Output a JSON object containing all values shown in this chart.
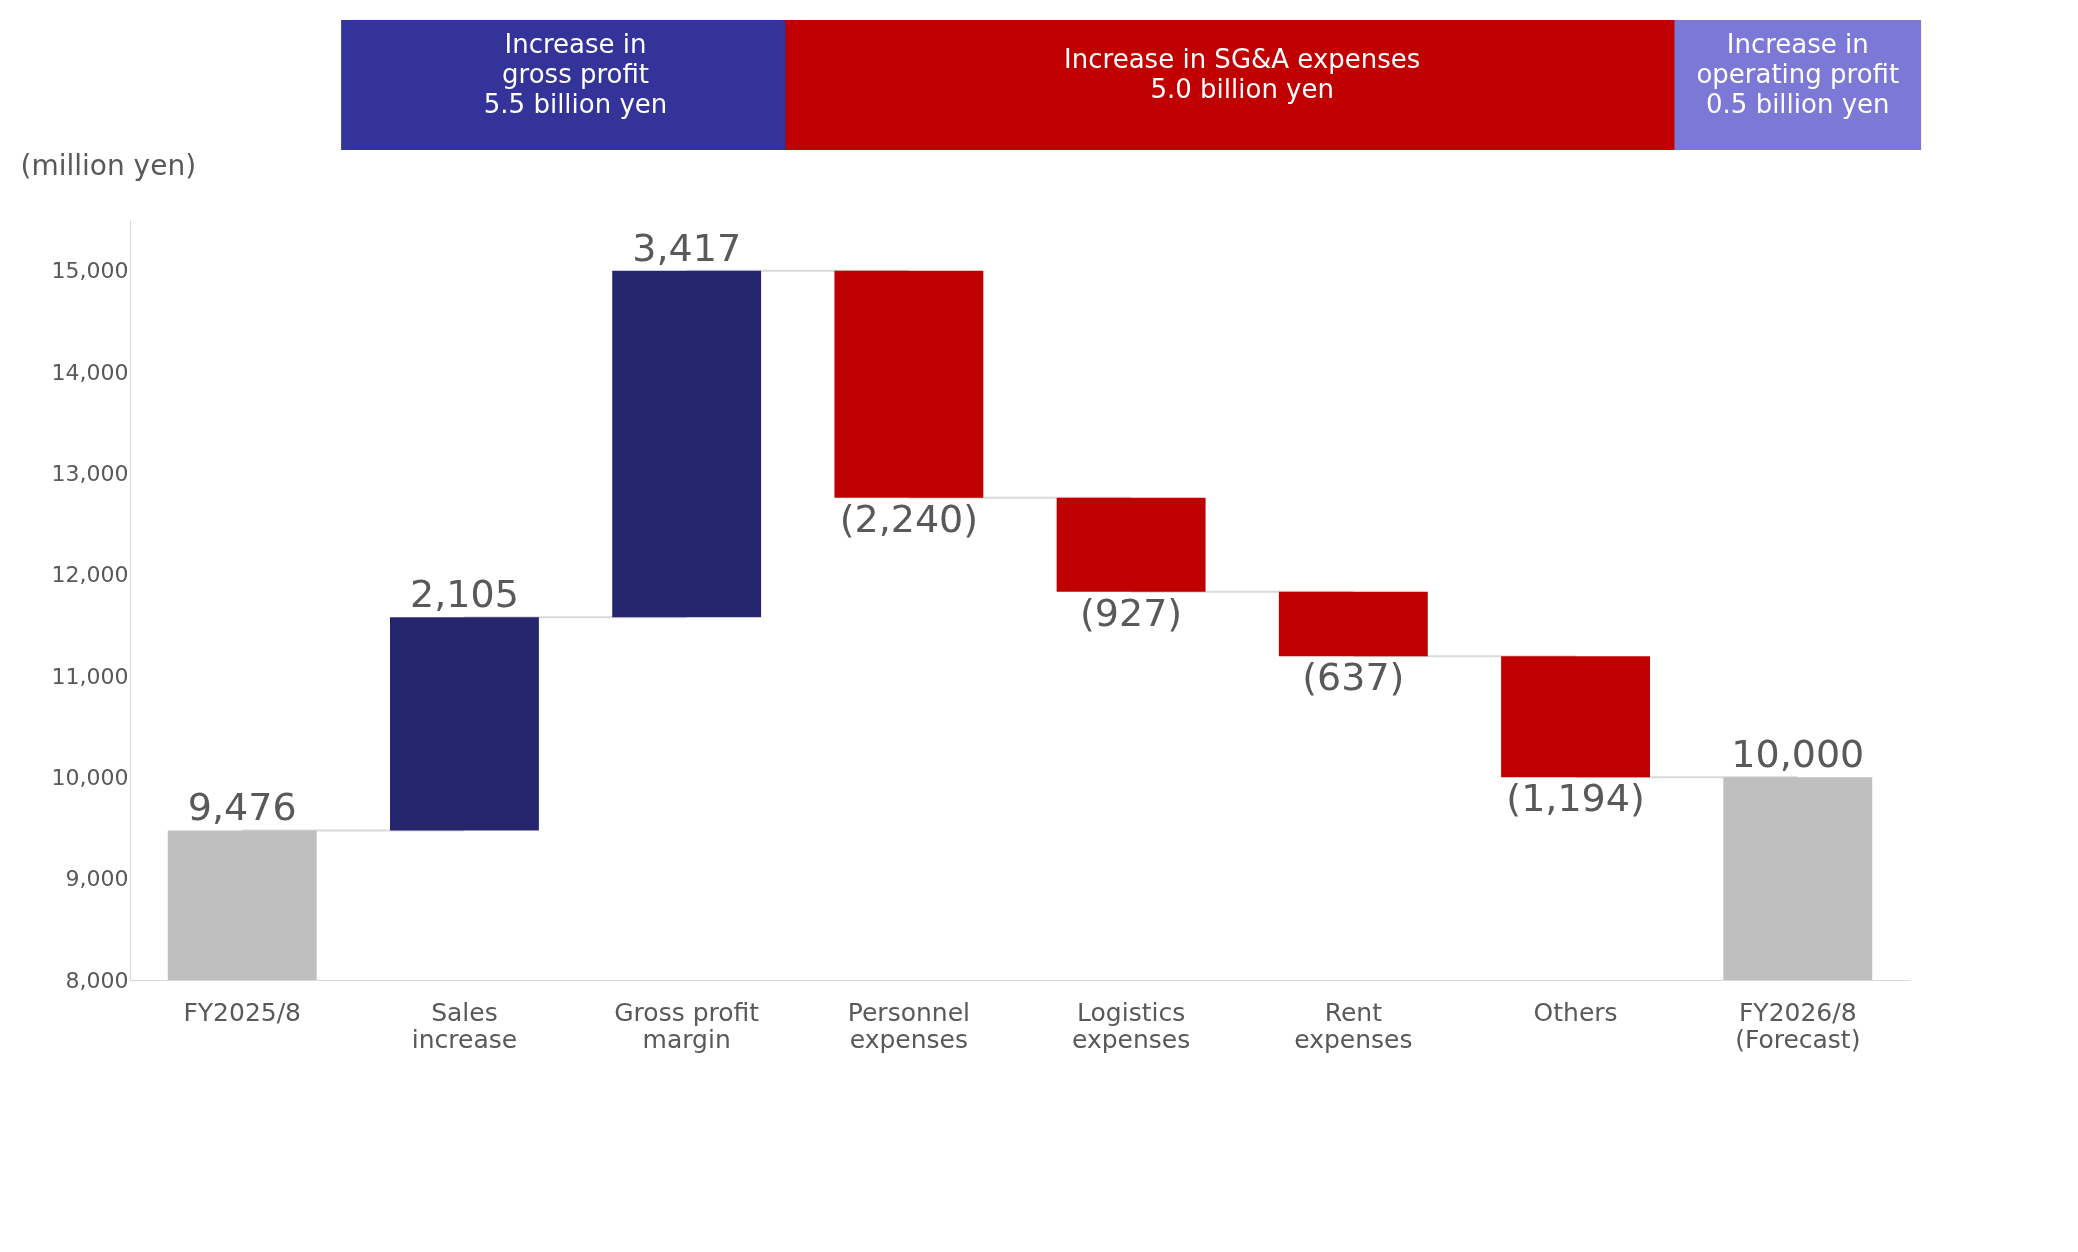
{
  "chart_data": {
    "type": "bar",
    "ylabel": "(million yen)",
    "categories": [
      "FY2025/8",
      "Sales\nincrease",
      "Gross profit\nmargin",
      "Personnel\nexpenses",
      "Logistics\nexpenses",
      "Rent\nexpenses",
      "Others",
      "FY2026/8\n(Forecast)"
    ],
    "values": [
      9476,
      2105,
      3417,
      -2240,
      -927,
      -637,
      -1194,
      10000
    ],
    "base": [
      0,
      9476,
      11581,
      14998,
      12758,
      11831,
      11194,
      0
    ],
    "colors": [
      "#bfbfbf",
      "#26266e",
      "#26266e",
      "#c00000",
      "#c00000",
      "#c00000",
      "#c00000",
      "#bfbfbf"
    ],
    "value_labels": [
      "9,476",
      "2,105",
      "3,417",
      "(2,240)",
      "(927)",
      "(637)",
      "(1,194)",
      "10,000"
    ],
    "ylim": [
      8000,
      15500
    ],
    "yticks": [
      {
        "value": 8000,
        "label": "8,000"
      },
      {
        "value": 9000,
        "label": "9,000"
      },
      {
        "value": 10000,
        "label": "10,000"
      },
      {
        "value": 11000,
        "label": "11,000"
      },
      {
        "value": 12000,
        "label": "12,000"
      },
      {
        "value": 13000,
        "label": "13,000"
      },
      {
        "value": 14000,
        "label": "14,000"
      },
      {
        "value": 15000,
        "label": "15,000"
      }
    ],
    "grid": false,
    "annotations": [
      "Increase in\ngross profit\n5.5 billion yen",
      "Increase in SG&A expenses\n5.0 billion yen",
      "Increase in\noperating profit\n0.5 billion yen"
    ]
  }
}
